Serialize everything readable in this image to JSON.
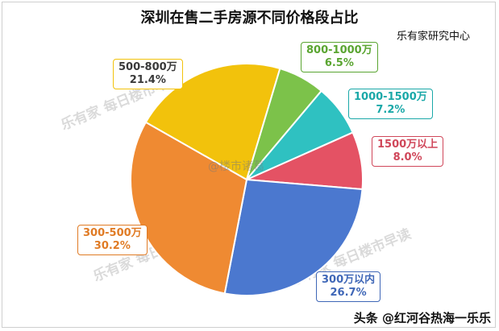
{
  "chart_data": {
    "type": "pie",
    "title": "深圳在售二手房源不同价格段占比",
    "source": "乐有家研究中心",
    "slices": [
      {
        "label": "1500万以上",
        "value": 8.0,
        "display": "8.0%",
        "color": "#e45264"
      },
      {
        "label": "300万以内",
        "value": 26.7,
        "display": "26.7%",
        "color": "#4b78cf"
      },
      {
        "label": "300-500万",
        "value": 30.2,
        "display": "30.2%",
        "color": "#ef8a32"
      },
      {
        "label": "500-800万",
        "value": 21.4,
        "display": "21.4%",
        "color": "#f2c20c"
      },
      {
        "label": "800-1000万",
        "value": 6.5,
        "display": "6.5%",
        "color": "#7cc24a"
      },
      {
        "label": "1000-1500万",
        "value": 7.2,
        "display": "7.2%",
        "color": "#2fc1c1"
      }
    ],
    "start_angle_deg": 66
  },
  "watermarks": {
    "top_left": "乐有家 每日楼市早读",
    "bottom_left": "乐有家 每日楼市早读",
    "bottom_mid": "乐有家 每日楼市早读",
    "center": "@楼市诸葛",
    "footer": "头条 @红河谷热海一乐乐"
  },
  "colors": {
    "title": "#111111",
    "label_1500": "#d0475a",
    "label_0_300": "#3f67b7",
    "label_300_500": "#e07b25",
    "label_500_800": "#3a3a3a",
    "label_800_1000": "#5aa531",
    "label_1000_1500": "#1aa8a8"
  }
}
